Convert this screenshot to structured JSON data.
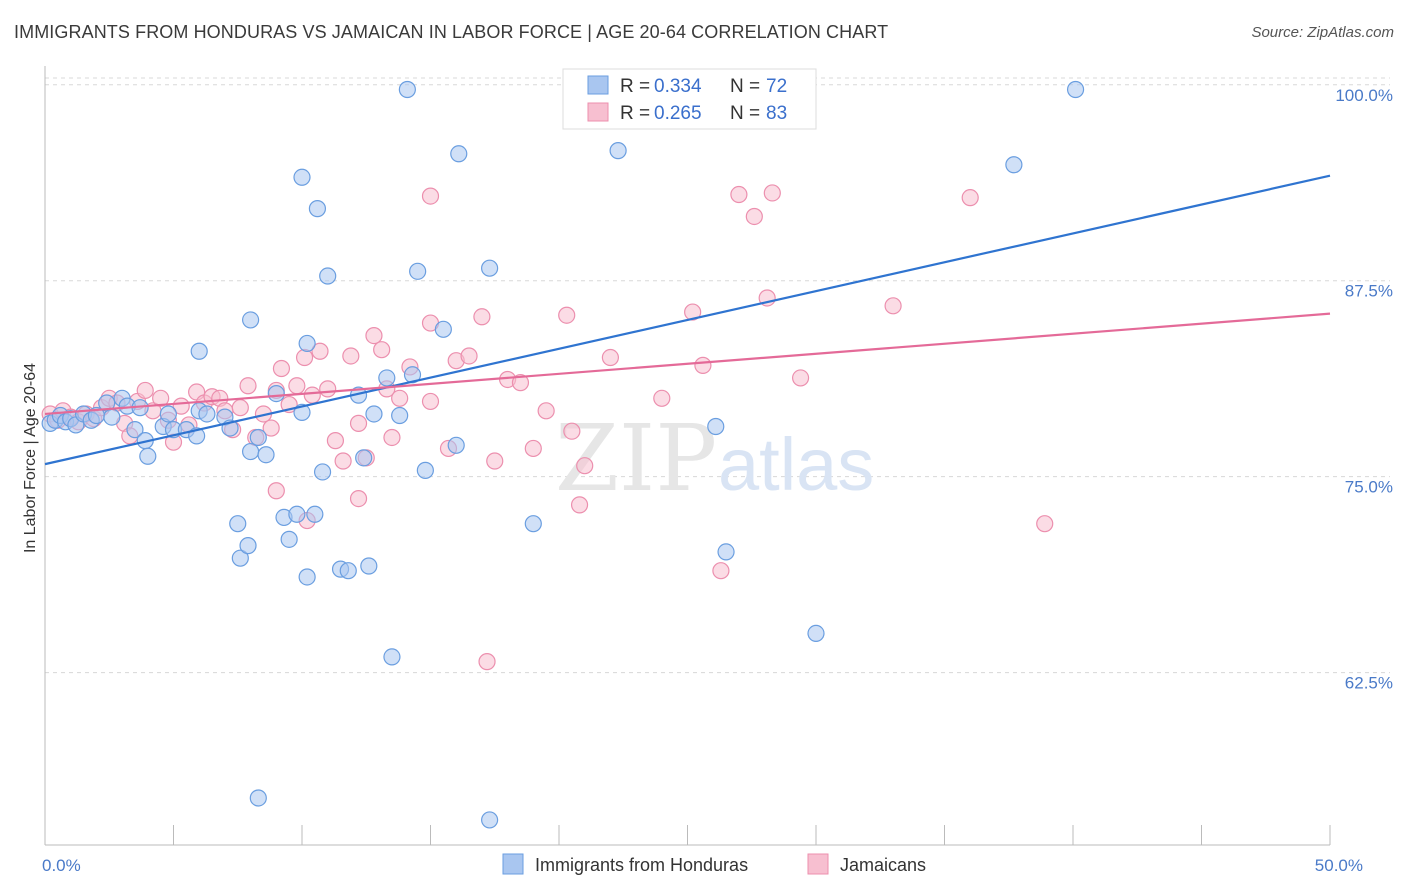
{
  "title": "IMMIGRANTS FROM HONDURAS VS JAMAICAN IN LABOR FORCE | AGE 20-64 CORRELATION CHART",
  "source": "Source: ZipAtlas.com",
  "watermark": {
    "zip": "ZIP",
    "atlas": "atlas"
  },
  "colors": {
    "blue_fill": "#a9c6f0",
    "blue_stroke": "#6a9ee0",
    "blue_line": "#2f74d0",
    "pink_fill": "#f7bfd0",
    "pink_stroke": "#ec8fae",
    "pink_line": "#e46a98",
    "tick_text": "#4a7ac8",
    "grid": "#d8d8d8"
  },
  "legend": {
    "rows": [
      {
        "r_label": "R = ",
        "r_value": "0.334",
        "n_label": "N = ",
        "n_value": "72"
      },
      {
        "r_label": "R = ",
        "r_value": "0.265",
        "n_label": "N = ",
        "n_value": "83"
      }
    ]
  },
  "bottom_legend": [
    "Immigrants from Honduras",
    "Jamaicans"
  ],
  "chart_data": {
    "type": "scatter",
    "title": "IMMIGRANTS FROM HONDURAS VS JAMAICAN IN LABOR FORCE | AGE 20-64 CORRELATION CHART",
    "xlabel": "",
    "ylabel": "In Labor Force | Age 20-64",
    "xlim": [
      0,
      50
    ],
    "ylim": [
      51.5,
      101.2
    ],
    "x_tick_labels": [
      {
        "value": 0,
        "label": "0.0%"
      },
      {
        "value": 50,
        "label": "50.0%"
      }
    ],
    "x_minor_ticks": [
      0,
      5,
      10,
      15,
      20,
      25,
      30,
      35,
      40,
      45,
      50
    ],
    "y_ticks": [
      {
        "value": 100,
        "label": "100.0%"
      },
      {
        "value": 87.5,
        "label": "87.5%"
      },
      {
        "value": 75,
        "label": "75.0%"
      },
      {
        "value": 62.5,
        "label": "62.5%"
      }
    ],
    "grid": true,
    "legend_placement": "top-center",
    "series": [
      {
        "name": "Immigrants from Honduras",
        "color": "#a9c6f0",
        "trend": {
          "x": [
            0,
            50
          ],
          "y": [
            75.8,
            94.2
          ]
        },
        "points": [
          [
            0.2,
            78.4
          ],
          [
            0.4,
            78.6
          ],
          [
            0.6,
            78.9
          ],
          [
            0.8,
            78.5
          ],
          [
            1.0,
            78.7
          ],
          [
            1.2,
            78.3
          ],
          [
            1.5,
            79.0
          ],
          [
            1.8,
            78.6
          ],
          [
            2.0,
            78.9
          ],
          [
            2.4,
            79.7
          ],
          [
            2.6,
            78.8
          ],
          [
            3.0,
            80.0
          ],
          [
            3.2,
            79.5
          ],
          [
            3.5,
            78.0
          ],
          [
            3.7,
            79.4
          ],
          [
            3.9,
            77.3
          ],
          [
            4.0,
            76.3
          ],
          [
            4.6,
            78.2
          ],
          [
            4.8,
            79.0
          ],
          [
            5.0,
            78.0
          ],
          [
            5.5,
            78.0
          ],
          [
            5.9,
            77.6
          ],
          [
            6.0,
            79.2
          ],
          [
            6.3,
            79.0
          ],
          [
            7.0,
            78.8
          ],
          [
            7.2,
            78.1
          ],
          [
            7.5,
            72.0
          ],
          [
            7.6,
            69.8
          ],
          [
            7.9,
            70.6
          ],
          [
            8.0,
            76.6
          ],
          [
            8.3,
            77.5
          ],
          [
            8.6,
            76.4
          ],
          [
            9.0,
            80.3
          ],
          [
            9.3,
            72.4
          ],
          [
            9.5,
            71.0
          ],
          [
            9.8,
            72.6
          ],
          [
            10.0,
            79.1
          ],
          [
            10.2,
            68.6
          ],
          [
            10.5,
            72.6
          ],
          [
            10.8,
            75.3
          ],
          [
            11.0,
            87.8
          ],
          [
            11.5,
            69.1
          ],
          [
            11.8,
            69.0
          ],
          [
            12.2,
            80.2
          ],
          [
            12.4,
            76.2
          ],
          [
            12.6,
            69.3
          ],
          [
            12.8,
            79.0
          ],
          [
            13.3,
            81.3
          ],
          [
            13.8,
            78.9
          ],
          [
            14.3,
            81.5
          ],
          [
            14.8,
            75.4
          ],
          [
            15.5,
            84.4
          ],
          [
            16.0,
            77.0
          ],
          [
            19.0,
            72.0
          ],
          [
            22.3,
            95.8
          ],
          [
            26.1,
            78.2
          ],
          [
            26.5,
            70.2
          ],
          [
            30.0,
            65.0
          ],
          [
            37.7,
            94.9
          ],
          [
            10.0,
            94.1
          ],
          [
            10.6,
            92.1
          ],
          [
            13.5,
            63.5
          ],
          [
            14.5,
            88.1
          ],
          [
            17.3,
            88.3
          ],
          [
            16.1,
            95.6
          ],
          [
            14.1,
            99.7
          ],
          [
            8.3,
            54.5
          ],
          [
            17.3,
            53.1
          ],
          [
            40.1,
            99.7
          ],
          [
            10.2,
            83.5
          ],
          [
            6.0,
            83.0
          ],
          [
            8.0,
            85.0
          ]
        ]
      },
      {
        "name": "Jamaicans",
        "color": "#f7bfd0",
        "trend": {
          "x": [
            0,
            50
          ],
          "y": [
            79.0,
            85.4
          ]
        },
        "points": [
          [
            0.2,
            79.0
          ],
          [
            0.5,
            78.6
          ],
          [
            0.7,
            79.2
          ],
          [
            1.0,
            78.8
          ],
          [
            1.3,
            78.5
          ],
          [
            1.6,
            79.0
          ],
          [
            1.9,
            78.7
          ],
          [
            2.2,
            79.4
          ],
          [
            2.5,
            80.0
          ],
          [
            2.8,
            79.7
          ],
          [
            3.1,
            78.4
          ],
          [
            3.3,
            77.6
          ],
          [
            3.6,
            79.8
          ],
          [
            3.9,
            80.5
          ],
          [
            4.2,
            79.2
          ],
          [
            4.5,
            80.0
          ],
          [
            4.8,
            78.6
          ],
          [
            5.0,
            77.2
          ],
          [
            5.3,
            79.5
          ],
          [
            5.6,
            78.3
          ],
          [
            5.9,
            80.4
          ],
          [
            6.2,
            79.7
          ],
          [
            6.5,
            80.1
          ],
          [
            6.8,
            80.0
          ],
          [
            7.0,
            79.2
          ],
          [
            7.3,
            78.0
          ],
          [
            7.6,
            79.4
          ],
          [
            7.9,
            80.8
          ],
          [
            8.2,
            77.5
          ],
          [
            8.5,
            79.0
          ],
          [
            8.8,
            78.1
          ],
          [
            9.0,
            80.5
          ],
          [
            9.2,
            81.9
          ],
          [
            9.5,
            79.6
          ],
          [
            9.8,
            80.8
          ],
          [
            10.1,
            82.6
          ],
          [
            10.4,
            80.2
          ],
          [
            10.7,
            83.0
          ],
          [
            11.0,
            80.6
          ],
          [
            11.3,
            77.3
          ],
          [
            11.6,
            76.0
          ],
          [
            11.9,
            82.7
          ],
          [
            12.2,
            78.4
          ],
          [
            12.5,
            76.2
          ],
          [
            12.8,
            84.0
          ],
          [
            13.1,
            83.1
          ],
          [
            13.3,
            80.6
          ],
          [
            13.8,
            80.0
          ],
          [
            14.2,
            82.0
          ],
          [
            15.0,
            84.8
          ],
          [
            15.7,
            76.8
          ],
          [
            16.0,
            82.4
          ],
          [
            16.5,
            82.7
          ],
          [
            17.0,
            85.2
          ],
          [
            17.5,
            76.0
          ],
          [
            18.0,
            81.2
          ],
          [
            18.5,
            81.0
          ],
          [
            19.0,
            76.8
          ],
          [
            19.5,
            79.2
          ],
          [
            20.3,
            85.3
          ],
          [
            20.5,
            77.9
          ],
          [
            20.8,
            73.2
          ],
          [
            21.0,
            75.7
          ],
          [
            22.0,
            82.6
          ],
          [
            24.0,
            80.0
          ],
          [
            25.2,
            85.5
          ],
          [
            25.6,
            82.1
          ],
          [
            26.3,
            69.0
          ],
          [
            27.0,
            93.0
          ],
          [
            27.6,
            91.6
          ],
          [
            28.3,
            93.1
          ],
          [
            28.1,
            86.4
          ],
          [
            29.4,
            81.3
          ],
          [
            33.0,
            85.9
          ],
          [
            36.0,
            92.8
          ],
          [
            38.9,
            72.0
          ],
          [
            9.0,
            74.1
          ],
          [
            10.2,
            72.2
          ],
          [
            12.2,
            73.6
          ],
          [
            15.0,
            79.8
          ],
          [
            17.2,
            63.2
          ],
          [
            15.0,
            92.9
          ],
          [
            13.5,
            77.5
          ]
        ]
      }
    ]
  }
}
